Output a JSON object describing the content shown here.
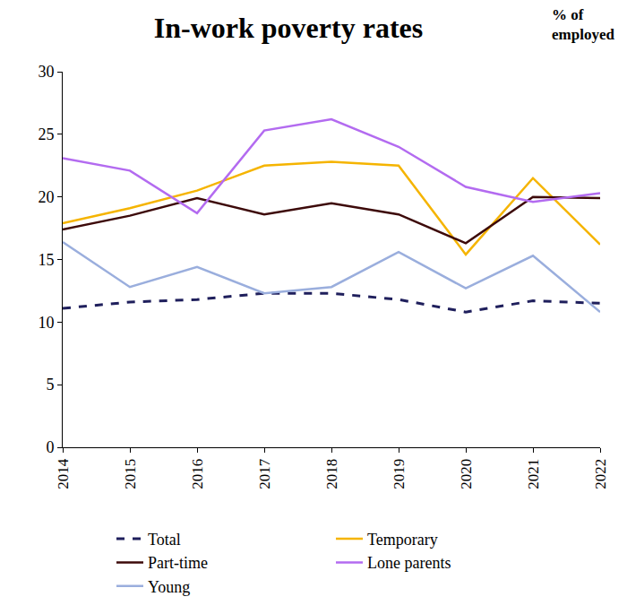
{
  "chart_data": {
    "type": "line",
    "title": "In-work poverty rates",
    "y_label": "% of employed",
    "categories": [
      "2014",
      "2015",
      "2016",
      "2017",
      "2018",
      "2019",
      "2020",
      "2021",
      "2022"
    ],
    "series": [
      {
        "name": "Total",
        "color": "#1f1f5c",
        "line_style": "dash",
        "values": [
          11.1,
          11.6,
          11.8,
          12.3,
          12.3,
          11.8,
          10.8,
          11.7,
          11.5
        ]
      },
      {
        "name": "Temporary",
        "color": "#f5b400",
        "line_style": "solid",
        "values": [
          17.9,
          19.1,
          20.5,
          22.5,
          22.8,
          22.5,
          15.4,
          21.5,
          16.2
        ]
      },
      {
        "name": "Part-time",
        "color": "#3d0a0a",
        "line_style": "solid",
        "values": [
          17.4,
          18.5,
          19.9,
          18.6,
          19.5,
          18.6,
          16.3,
          20.0,
          19.9
        ]
      },
      {
        "name": "Lone parents",
        "color": "#b36bf0",
        "line_style": "solid",
        "values": [
          23.1,
          22.1,
          18.7,
          25.3,
          26.2,
          24.0,
          20.8,
          19.6,
          20.3
        ]
      },
      {
        "name": "Young",
        "color": "#9aaedd",
        "line_style": "solid",
        "values": [
          16.4,
          12.8,
          14.4,
          12.3,
          12.8,
          15.6,
          12.7,
          15.3,
          10.8
        ]
      }
    ],
    "ylim": [
      0,
      30
    ],
    "yticks": [
      0,
      5,
      10,
      15,
      20,
      25,
      30
    ],
    "grid": false,
    "legend": "bottom"
  }
}
